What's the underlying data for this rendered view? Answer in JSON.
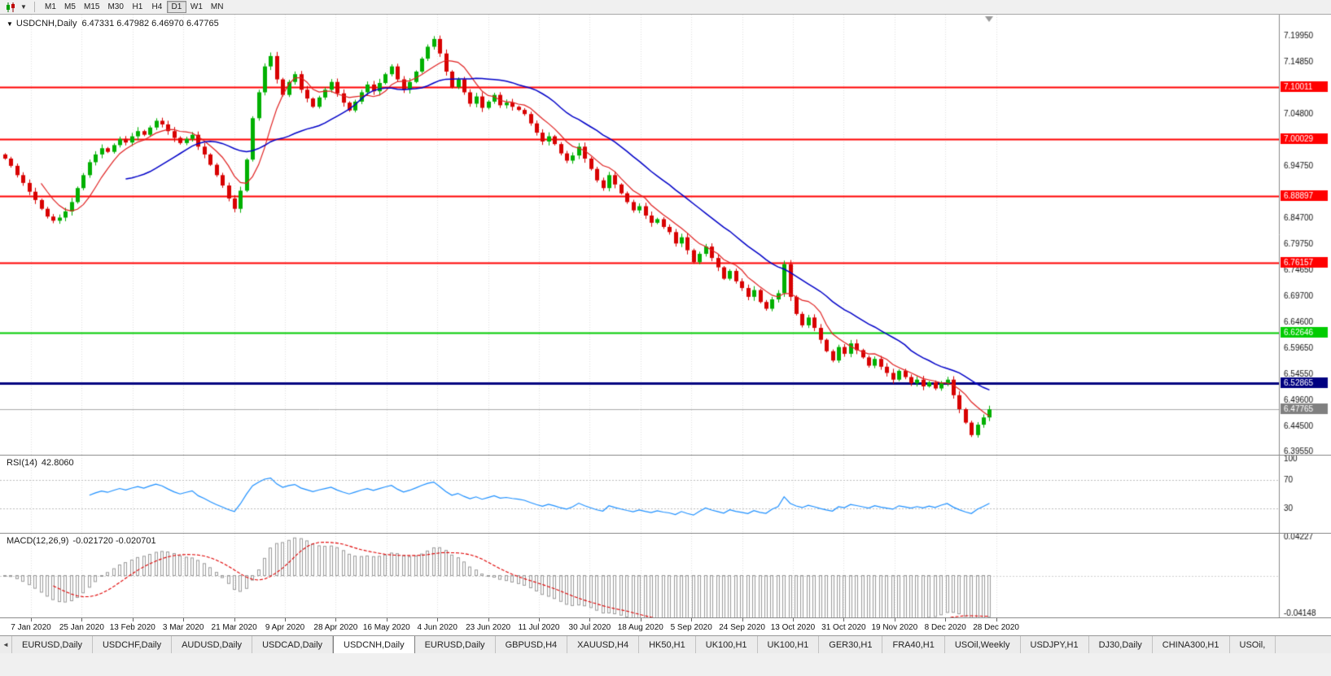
{
  "toolbar": {
    "timeframes": [
      "M1",
      "M5",
      "M15",
      "M30",
      "H1",
      "H4",
      "D1",
      "W1",
      "MN"
    ],
    "active": "D1"
  },
  "chart": {
    "title": "USDCNH,Daily",
    "ohlc": "6.47331 6.47982 6.46970 6.47765"
  },
  "rsi_label": {
    "name": "RSI(14)",
    "value": "42.8060"
  },
  "macd_label": {
    "name": "MACD(12,26,9)",
    "values": "-0.021720 -0.020701"
  },
  "tabs": [
    {
      "label": "EURUSD,Daily",
      "active": false
    },
    {
      "label": "USDCHF,Daily",
      "active": false
    },
    {
      "label": "AUDUSD,Daily",
      "active": false
    },
    {
      "label": "USDCAD,Daily",
      "active": false
    },
    {
      "label": "USDCNH,Daily",
      "active": true
    },
    {
      "label": "EURUSD,Daily",
      "active": false
    },
    {
      "label": "GBPUSD,H4",
      "active": false
    },
    {
      "label": "XAUUSD,H4",
      "active": false
    },
    {
      "label": "HK50,H1",
      "active": false
    },
    {
      "label": "UK100,H1",
      "active": false
    },
    {
      "label": "UK100,H1",
      "active": false
    },
    {
      "label": "GER30,H1",
      "active": false
    },
    {
      "label": "FRA40,H1",
      "active": false
    },
    {
      "label": "USOil,Weekly",
      "active": false
    },
    {
      "label": "USDJPY,H1",
      "active": false
    },
    {
      "label": "DJ30,Daily",
      "active": false
    },
    {
      "label": "CHINA300,H1",
      "active": false
    },
    {
      "label": "USOil,",
      "active": false
    }
  ],
  "chart_data": {
    "type": "candlestick",
    "symbol": "USDCNH",
    "timeframe": "Daily",
    "price_max": 7.24,
    "price_min": 6.39,
    "first_open": 6.97,
    "wick": 0.006,
    "ma_fast_period": 7,
    "ma_slow_period": 21,
    "closes": [
      6.962,
      6.948,
      6.93,
      6.915,
      6.898,
      6.882,
      6.865,
      6.85,
      6.842,
      6.848,
      6.86,
      6.878,
      6.905,
      6.93,
      6.955,
      6.97,
      6.982,
      6.975,
      6.988,
      7.0,
      6.993,
      7.005,
      7.015,
      7.008,
      7.022,
      7.035,
      7.028,
      7.015,
      7.002,
      6.992,
      7.0,
      7.008,
      6.985,
      6.97,
      6.95,
      6.93,
      6.91,
      6.885,
      6.865,
      6.9,
      6.96,
      7.04,
      7.09,
      7.14,
      7.16,
      7.115,
      7.085,
      7.11,
      7.125,
      7.095,
      7.078,
      7.062,
      7.08,
      7.095,
      7.11,
      7.088,
      7.07,
      7.055,
      7.072,
      7.09,
      7.105,
      7.092,
      7.108,
      7.125,
      7.14,
      7.115,
      7.095,
      7.11,
      7.13,
      7.155,
      7.178,
      7.193,
      7.165,
      7.13,
      7.1,
      7.115,
      7.09,
      7.068,
      7.082,
      7.06,
      7.072,
      7.085,
      7.065,
      7.07,
      7.062,
      7.056,
      7.048,
      7.03,
      7.012,
      6.995,
      7.005,
      6.99,
      6.972,
      6.958,
      6.968,
      6.985,
      6.962,
      6.942,
      6.92,
      6.905,
      6.93,
      6.912,
      6.895,
      6.878,
      6.862,
      6.87,
      6.852,
      6.838,
      6.845,
      6.83,
      6.82,
      6.798,
      6.81,
      6.785,
      6.762,
      6.778,
      6.792,
      6.77,
      6.752,
      6.73,
      6.745,
      6.725,
      6.712,
      6.695,
      6.708,
      6.685,
      6.672,
      6.69,
      6.702,
      6.758,
      6.695,
      6.662,
      6.64,
      6.655,
      6.635,
      6.612,
      6.59,
      6.572,
      6.598,
      6.585,
      6.605,
      6.592,
      6.578,
      6.562,
      6.575,
      6.56,
      6.548,
      6.535,
      6.552,
      6.54,
      6.528,
      6.535,
      6.522,
      6.53,
      6.518,
      6.528,
      6.535,
      6.505,
      6.478,
      6.452,
      6.428,
      6.448,
      6.462,
      6.4777
    ],
    "hlines": [
      {
        "price": 7.10011,
        "label": "7.10011",
        "color": "#ff0000",
        "width": 2
      },
      {
        "price": 7.00029,
        "label": "7.00029",
        "color": "#ff0000",
        "width": 2
      },
      {
        "price": 6.88897,
        "label": "6.88897",
        "color": "#ff0000",
        "width": 2
      },
      {
        "price": 6.76157,
        "label": "6.76157",
        "color": "#ff0000",
        "width": 2
      },
      {
        "price": 6.62646,
        "label": "6.62646",
        "color": "#00cc00",
        "width": 2
      },
      {
        "price": 6.52865,
        "label": "6.52865",
        "color": "#000080",
        "width": 3
      }
    ],
    "current_price": {
      "price": 6.47765,
      "label": "6.47765",
      "line_color": "#aaaaaa",
      "tag": "#808080"
    },
    "axis_ticks": [
      "7.19950",
      "7.14850",
      "7.04800",
      "6.94750",
      "6.84700",
      "6.79750",
      "6.74650",
      "6.69700",
      "6.64600",
      "6.59650",
      "6.54550",
      "6.49600",
      "6.44500",
      "6.39550"
    ],
    "rsi": {
      "period": 14,
      "levels": [
        70,
        30
      ],
      "axis_labels": [
        "100",
        "70",
        "30"
      ],
      "axis_values": [
        100,
        70,
        30
      ],
      "color": "#1e90ff",
      "current": "42.8060"
    },
    "macd": {
      "fast": 12,
      "slow": 26,
      "signal": 9,
      "main_value": "-0.021720",
      "signal_value": "-0.020701",
      "axis_max_label": "0.04227",
      "axis_max": 0.04227,
      "axis_min_label": "-0.04148",
      "axis_min": -0.04148,
      "range": 0.046
    },
    "dates": [
      "7 Jan 2020",
      "25 Jan 2020",
      "13 Feb 2020",
      "3 Mar 2020",
      "21 Mar 2020",
      "9 Apr 2020",
      "28 Apr 2020",
      "16 May 2020",
      "4 Jun 2020",
      "23 Jun 2020",
      "11 Jul 2020",
      "30 Jul 2020",
      "18 Aug 2020",
      "5 Sep 2020",
      "24 Sep 2020",
      "13 Oct 2020",
      "31 Oct 2020",
      "19 Nov 2020",
      "8 Dec 2020",
      "28 Dec 2020"
    ]
  }
}
